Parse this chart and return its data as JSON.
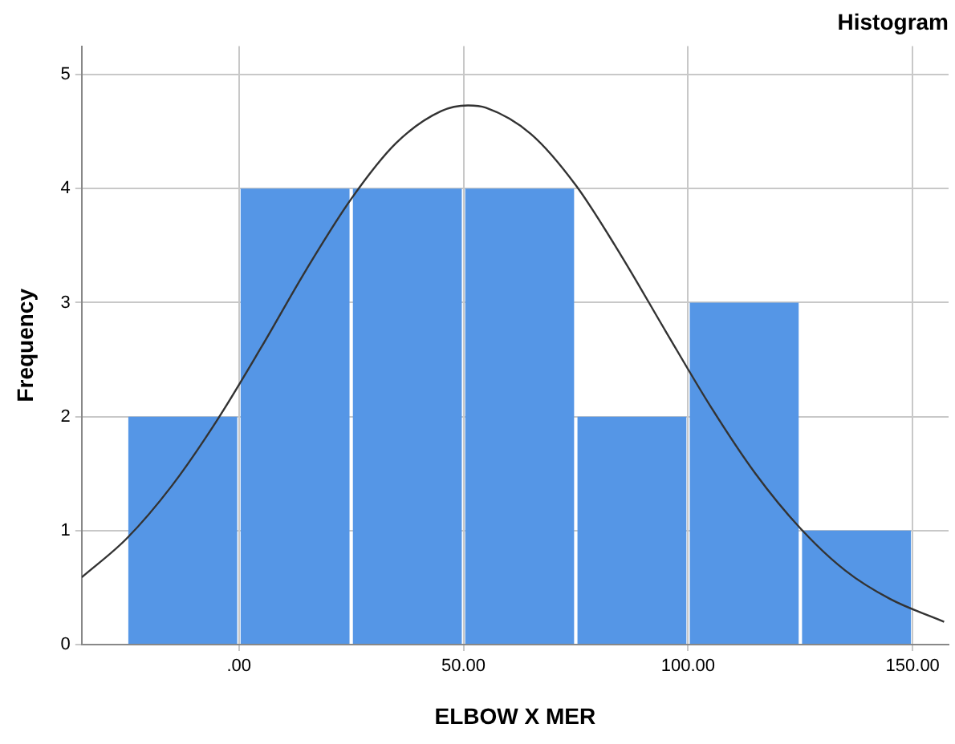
{
  "chart_data": {
    "type": "histogram",
    "title": "Histogram",
    "xlabel": "ELBOW X MER",
    "ylabel": "Frequency",
    "bins": [
      -25,
      0,
      25,
      50,
      75,
      100,
      125,
      150
    ],
    "values": [
      2,
      4,
      4,
      4,
      2,
      3,
      1
    ],
    "color": "#5596e6",
    "series": [
      {
        "type": "line",
        "color": "#333333",
        "x": [
          -35,
          -25,
          -15,
          -5,
          5,
          15,
          25,
          35,
          45,
          51,
          55,
          65,
          75,
          85,
          95,
          105,
          115,
          125,
          135,
          145,
          157
        ],
        "values": [
          0.59,
          0.93,
          1.39,
          1.96,
          2.61,
          3.29,
          3.91,
          4.4,
          4.68,
          4.73,
          4.71,
          4.48,
          4.03,
          3.42,
          2.75,
          2.09,
          1.5,
          1.02,
          0.65,
          0.4,
          0.2
        ]
      }
    ],
    "xlim": [
      -35,
      158
    ],
    "ylim": [
      0,
      5.25
    ],
    "xticks": [
      {
        "value": 0,
        "label": ".00"
      },
      {
        "value": 50,
        "label": "50.00"
      },
      {
        "value": 100,
        "label": "100.00"
      },
      {
        "value": 150,
        "label": "150.00"
      }
    ],
    "yticks": [
      0,
      1,
      2,
      3,
      4,
      5
    ],
    "grid": true,
    "legend": false,
    "marker": "none"
  }
}
